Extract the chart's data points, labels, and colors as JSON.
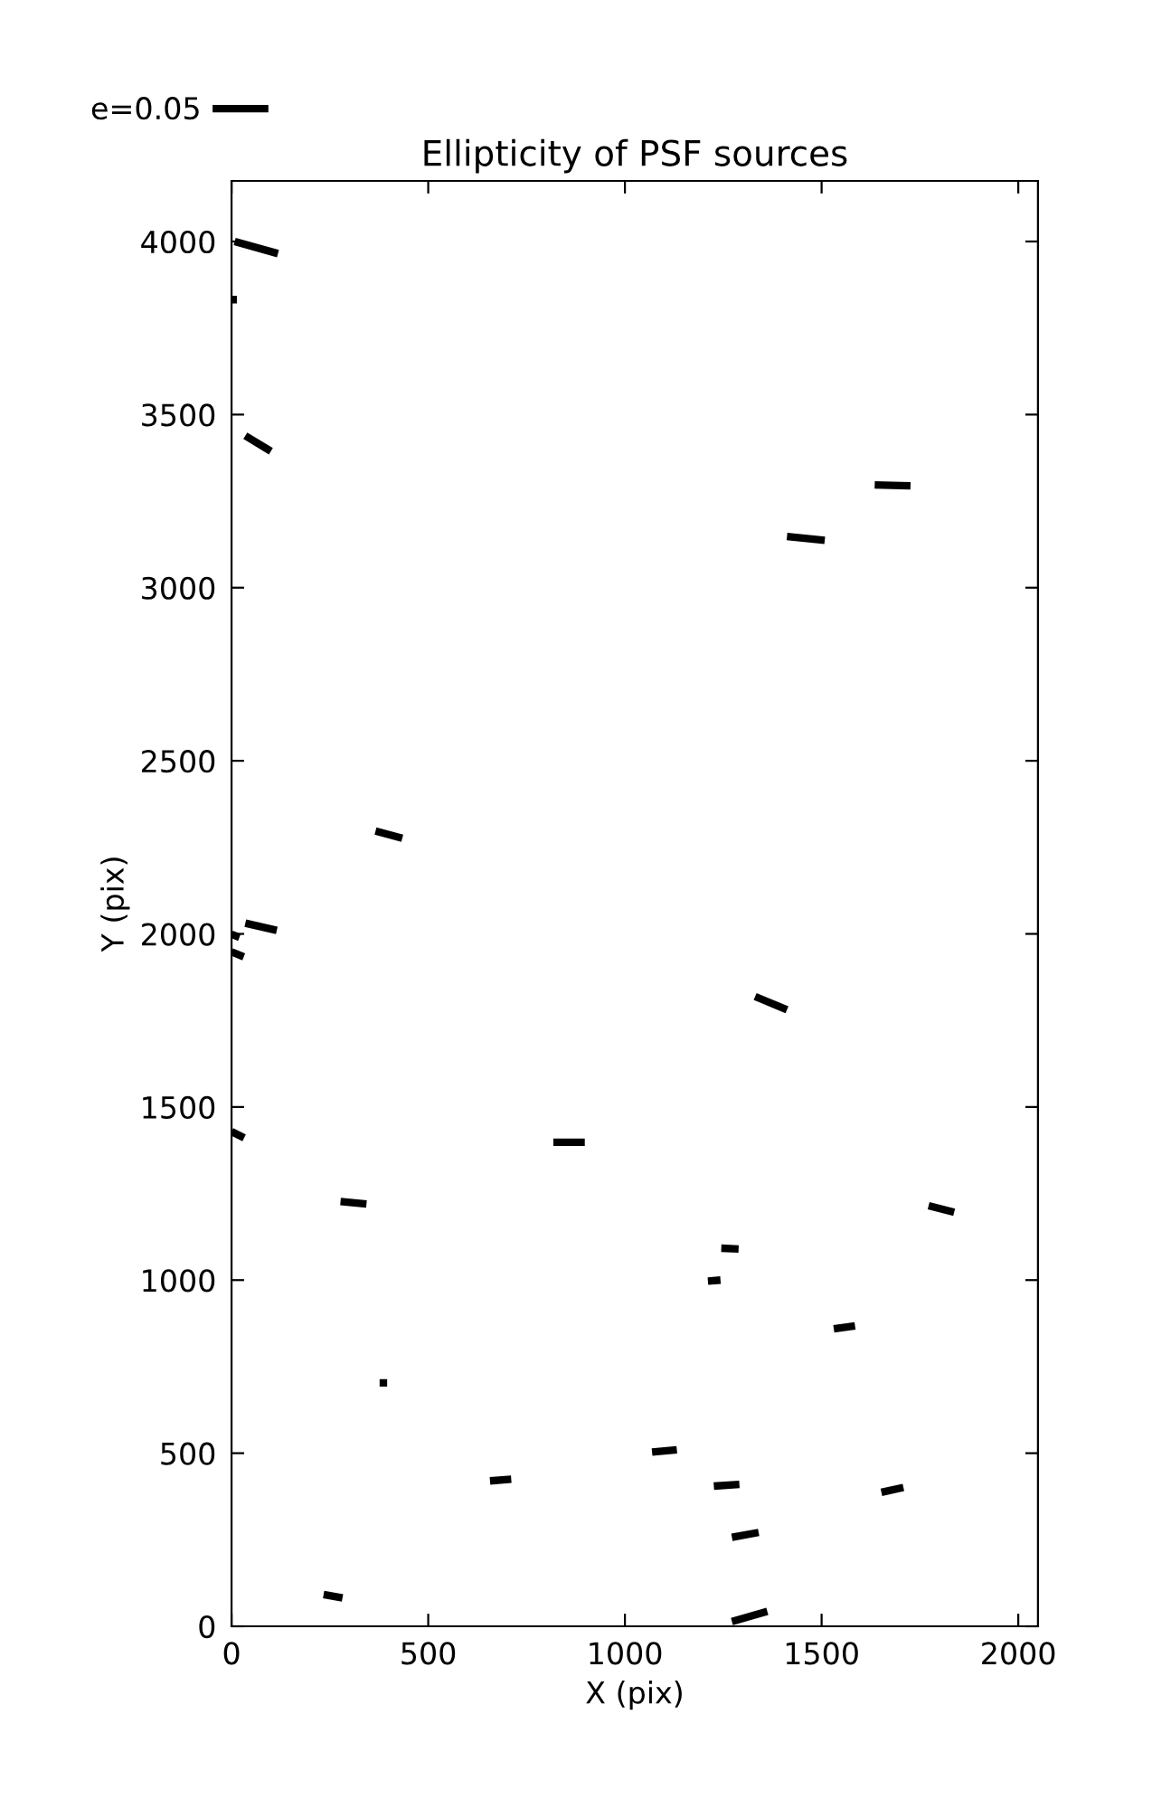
{
  "chart_data": {
    "type": "line",
    "title": "Ellipticity of PSF sources",
    "xlabel": "X (pix)",
    "ylabel": "Y (pix)",
    "xlim": [
      0,
      2050
    ],
    "ylim": [
      0,
      4175
    ],
    "xticks": [
      0,
      500,
      1000,
      1500,
      2000
    ],
    "yticks": [
      0,
      500,
      1000,
      1500,
      2000,
      2500,
      3000,
      3500,
      4000
    ],
    "grid": false,
    "legend": "top left",
    "marker": "none",
    "line_style": "solid",
    "series": [
      {
        "name": "e=0.05",
        "color": "#000000",
        "x": [
          8,
          118
        ],
        "values": [
          4000,
          3965
        ]
      },
      {
        "type": "scatter",
        "marker": "square",
        "color": "#000000",
        "x": [
          4
        ],
        "values": [
          3832
        ]
      },
      {
        "color": "#000000",
        "x": [
          35,
          100
        ],
        "values": [
          3439,
          3394
        ]
      },
      {
        "color": "#000000",
        "x": [
          1635,
          1726
        ],
        "values": [
          3297,
          3294
        ]
      },
      {
        "color": "#000000",
        "x": [
          1412,
          1508
        ],
        "values": [
          3148,
          3137
        ]
      },
      {
        "color": "#000000",
        "x": [
          366,
          434
        ],
        "values": [
          2297,
          2276
        ]
      },
      {
        "color": "#000000",
        "x": [
          35,
          115
        ],
        "values": [
          2031,
          2010
        ]
      },
      {
        "color": "#000000",
        "x": [
          0,
          20
        ],
        "values": [
          1999,
          1990
        ]
      },
      {
        "color": "#000000",
        "x": [
          0,
          31
        ],
        "values": [
          1948,
          1934
        ]
      },
      {
        "color": "#000000",
        "x": [
          1331,
          1412
        ],
        "values": [
          1819,
          1781
        ]
      },
      {
        "color": "#000000",
        "x": [
          0,
          32
        ],
        "values": [
          1429,
          1411
        ]
      },
      {
        "color": "#000000",
        "x": [
          818,
          898
        ],
        "values": [
          1398,
          1398
        ]
      },
      {
        "color": "#000000",
        "x": [
          277,
          343
        ],
        "values": [
          1227,
          1220
        ]
      },
      {
        "color": "#000000",
        "x": [
          1772,
          1837
        ],
        "values": [
          1215,
          1196
        ]
      },
      {
        "color": "#000000",
        "x": [
          1245,
          1289
        ],
        "values": [
          1092,
          1090
        ]
      },
      {
        "color": "#000000",
        "x": [
          1211,
          1243
        ],
        "values": [
          997,
          1000
        ]
      },
      {
        "color": "#000000",
        "x": [
          1531,
          1585
        ],
        "values": [
          859,
          868
        ]
      },
      {
        "type": "scatter",
        "marker": "square",
        "color": "#000000",
        "x": [
          386
        ],
        "values": [
          703
        ]
      },
      {
        "color": "#000000",
        "x": [
          1069,
          1132
        ],
        "values": [
          503,
          510
        ]
      },
      {
        "color": "#000000",
        "x": [
          657,
          711
        ],
        "values": [
          420,
          425
        ]
      },
      {
        "color": "#000000",
        "x": [
          1226,
          1291
        ],
        "values": [
          405,
          410
        ]
      },
      {
        "color": "#000000",
        "x": [
          1652,
          1708
        ],
        "values": [
          387,
          401
        ]
      },
      {
        "color": "#000000",
        "x": [
          1272,
          1340
        ],
        "values": [
          257,
          271
        ]
      },
      {
        "color": "#000000",
        "x": [
          234,
          282
        ],
        "values": [
          92,
          82
        ]
      },
      {
        "color": "#000000",
        "x": [
          1272,
          1362
        ],
        "values": [
          14,
          43
        ]
      }
    ]
  }
}
